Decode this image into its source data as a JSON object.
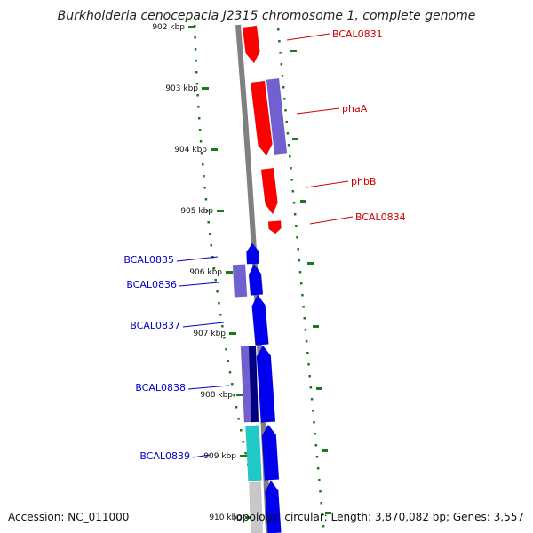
{
  "header": {
    "title": "Burkholderia cenocepacia J2315 chromosome 1, complete genome"
  },
  "footer": {
    "accession": "Accession: NC_011000",
    "stats": "Topology: circular; Length: 3,870,082 bp; Genes: 3,557"
  },
  "map": {
    "backbone_color": "#808080",
    "ticks": [
      "902 kbp",
      "903 kbp",
      "904 kbp",
      "905 kbp",
      "906 kbp",
      "907 kbp",
      "908 kbp",
      "909 kbp",
      "910 kbp"
    ],
    "tick_color": "#1a7a1a",
    "colors": {
      "red": "#ff0000",
      "purple": "#7060d0",
      "blue": "#0000ee",
      "navy": "#000080",
      "cyan": "#20c8c8",
      "gray": "#c8c8c8"
    },
    "features": [
      {
        "label": "BCAL0831",
        "label_color": "#cc0000"
      },
      {
        "label": "phaA",
        "label_color": "#cc0000"
      },
      {
        "label": "phbB",
        "label_color": "#cc0000"
      },
      {
        "label": "BCAL0834",
        "label_color": "#cc0000"
      },
      {
        "label": "BCAL0835",
        "label_color": "#0000cc"
      },
      {
        "label": "BCAL0836",
        "label_color": "#0000cc"
      },
      {
        "label": "BCAL0837",
        "label_color": "#0000cc"
      },
      {
        "label": "BCAL0838",
        "label_color": "#0000cc"
      },
      {
        "label": "BCAL0839",
        "label_color": "#0000cc"
      }
    ]
  }
}
